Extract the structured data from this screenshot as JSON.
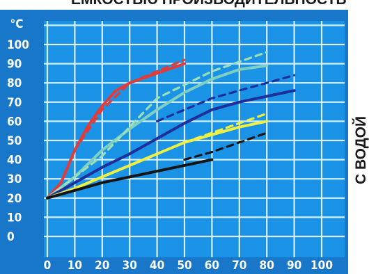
{
  "chart_data": {
    "type": "line",
    "title": "ЕМКОСТЬЮ ПРОИЗВОДИТЕЛЬНОСТЬ",
    "side_label": "С ВОДОЙ",
    "ylabel": "°C",
    "xlabel": "",
    "xlim": [
      0,
      100
    ],
    "ylim": [
      0,
      100
    ],
    "x_ticks": [
      "0",
      "10",
      "20",
      "30",
      "40",
      "50",
      "60",
      "70",
      "80",
      "90",
      "100"
    ],
    "y_ticks": [
      "100",
      "90",
      "80",
      "70",
      "60",
      "50",
      "40",
      "30",
      "20",
      "10",
      "0"
    ],
    "grid": true,
    "colors": {
      "background": "#1877c9",
      "plot": "#1a93e6",
      "grid": "#d6efff",
      "text": "#ffffff"
    },
    "series": [
      {
        "color": "#e23c3a",
        "style": "solid",
        "x": [
          0,
          5,
          10,
          15,
          20,
          25,
          30,
          40,
          50
        ],
        "y": [
          20,
          28,
          45,
          58,
          68,
          76,
          80,
          85,
          90
        ]
      },
      {
        "color": "#e23c3a",
        "style": "dashed",
        "x": [
          0,
          5,
          10,
          20,
          30,
          40,
          50
        ],
        "y": [
          20,
          28,
          45,
          66,
          80,
          86,
          92
        ]
      },
      {
        "color": "#7fd0c0",
        "style": "solid",
        "x": [
          0,
          10,
          20,
          30,
          40,
          50,
          60,
          70,
          80
        ],
        "y": [
          20,
          31,
          45,
          56,
          66,
          75,
          82,
          87,
          89
        ]
      },
      {
        "color": "#9ee0b6",
        "style": "dashed",
        "x": [
          0,
          20,
          40,
          60,
          80
        ],
        "y": [
          20,
          42,
          72,
          86,
          96
        ]
      },
      {
        "color": "#1e2f9c",
        "style": "solid",
        "x": [
          0,
          10,
          20,
          30,
          40,
          50,
          60,
          70,
          80,
          90
        ],
        "y": [
          20,
          28,
          36,
          43,
          51,
          59,
          66,
          70,
          73,
          76
        ]
      },
      {
        "color": "#1e2f9c",
        "style": "dashed",
        "x": [
          40,
          50,
          60,
          70,
          80,
          90
        ],
        "y": [
          60,
          66,
          72,
          76,
          80,
          84
        ]
      },
      {
        "color": "#f0f040",
        "style": "solid",
        "x": [
          0,
          10,
          20,
          30,
          40,
          50,
          60,
          70,
          80
        ],
        "y": [
          20,
          25,
          31,
          37,
          43,
          49,
          53,
          57,
          60
        ]
      },
      {
        "color": "#f0f040",
        "style": "dashed",
        "x": [
          50,
          60,
          70,
          80
        ],
        "y": [
          49,
          54,
          59,
          64
        ]
      },
      {
        "color": "#141414",
        "style": "solid",
        "x": [
          0,
          10,
          20,
          30,
          40,
          50,
          60
        ],
        "y": [
          20,
          24,
          28,
          31,
          34,
          37,
          40
        ]
      },
      {
        "color": "#141414",
        "style": "dashed",
        "x": [
          50,
          60,
          70,
          80
        ],
        "y": [
          40,
          44,
          49,
          54
        ]
      }
    ]
  }
}
